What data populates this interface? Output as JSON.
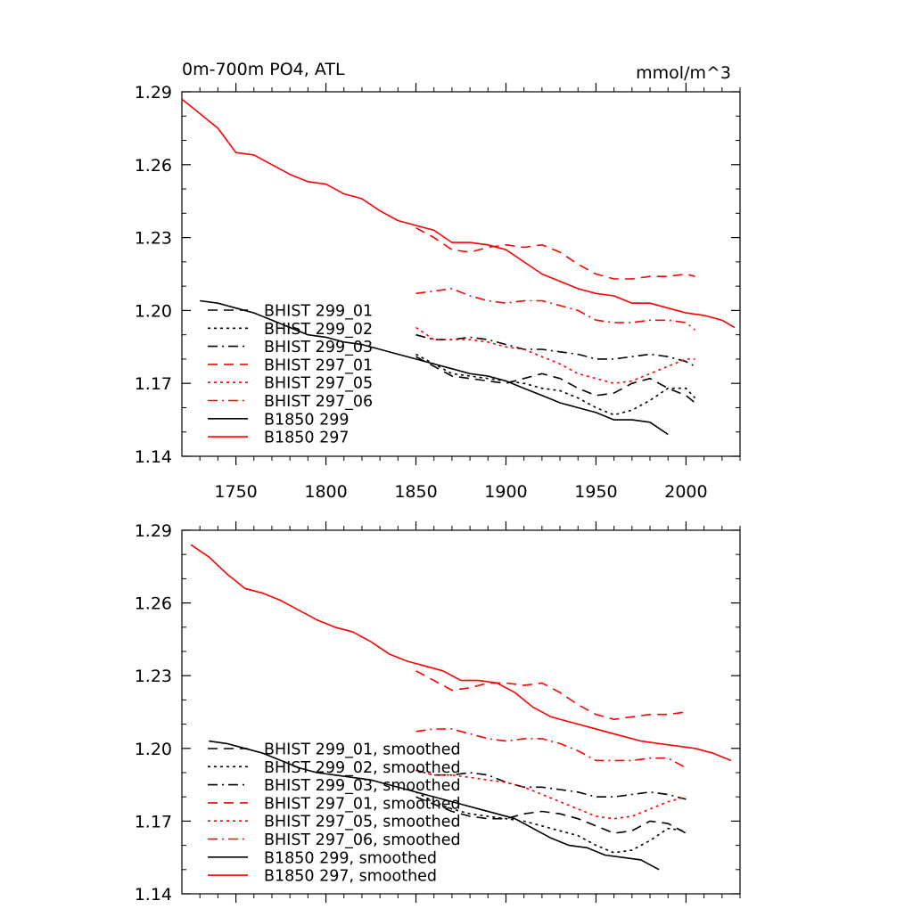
{
  "chart_data": [
    {
      "type": "line",
      "title": "0m-700m PO4, ATL",
      "units": "mmol/m^3",
      "xlabel": "",
      "ylabel": "",
      "xlim": [
        1720,
        2030
      ],
      "ylim": [
        1.14,
        1.29
      ],
      "x_ticks": [
        1750,
        1800,
        1850,
        1900,
        1950,
        2000
      ],
      "x_tick_labels": [
        "1750",
        "1800",
        "1850",
        "1900",
        "1950",
        "2000"
      ],
      "y_ticks": [
        1.14,
        1.17,
        1.2,
        1.23,
        1.26,
        1.29
      ],
      "y_tick_labels": [
        "1.14",
        "1.17",
        "1.20",
        "1.23",
        "1.26",
        "1.29"
      ],
      "grid": false,
      "legend_position": "bottom-left",
      "series": [
        {
          "name": "BHIST 299_01",
          "color": "#000000",
          "dash": "dashed",
          "x": [
            1850,
            1860,
            1870,
            1880,
            1890,
            1900,
            1910,
            1920,
            1930,
            1940,
            1950,
            1960,
            1970,
            1980,
            1990,
            2000,
            2005
          ],
          "values": [
            1.181,
            1.177,
            1.173,
            1.172,
            1.171,
            1.17,
            1.172,
            1.174,
            1.172,
            1.168,
            1.165,
            1.166,
            1.17,
            1.172,
            1.168,
            1.165,
            1.162
          ]
        },
        {
          "name": "BHIST 299_02",
          "color": "#000000",
          "dash": "dotted",
          "x": [
            1850,
            1860,
            1870,
            1880,
            1890,
            1900,
            1910,
            1920,
            1930,
            1940,
            1950,
            1960,
            1970,
            1980,
            1990,
            2000,
            2005
          ],
          "values": [
            1.182,
            1.178,
            1.174,
            1.173,
            1.172,
            1.171,
            1.17,
            1.168,
            1.167,
            1.164,
            1.16,
            1.157,
            1.159,
            1.163,
            1.168,
            1.168,
            1.164
          ]
        },
        {
          "name": "BHIST 299_03",
          "color": "#000000",
          "dash": "dashdot",
          "x": [
            1850,
            1860,
            1870,
            1880,
            1890,
            1900,
            1910,
            1920,
            1930,
            1940,
            1950,
            1960,
            1970,
            1980,
            1990,
            2000,
            2005
          ],
          "values": [
            1.19,
            1.188,
            1.188,
            1.189,
            1.188,
            1.186,
            1.184,
            1.184,
            1.183,
            1.182,
            1.18,
            1.18,
            1.181,
            1.182,
            1.181,
            1.179,
            1.177
          ]
        },
        {
          "name": "BHIST 297_01",
          "color": "#ff0000",
          "dash": "dashed",
          "x": [
            1850,
            1860,
            1870,
            1880,
            1890,
            1900,
            1910,
            1920,
            1930,
            1940,
            1950,
            1960,
            1970,
            1980,
            1990,
            2000,
            2005
          ],
          "values": [
            1.234,
            1.23,
            1.225,
            1.224,
            1.226,
            1.227,
            1.226,
            1.227,
            1.224,
            1.219,
            1.215,
            1.213,
            1.213,
            1.214,
            1.214,
            1.215,
            1.214
          ]
        },
        {
          "name": "BHIST 297_05",
          "color": "#ff0000",
          "dash": "dotted",
          "x": [
            1850,
            1860,
            1870,
            1880,
            1890,
            1900,
            1910,
            1920,
            1930,
            1940,
            1950,
            1960,
            1970,
            1980,
            1990,
            2000,
            2005
          ],
          "values": [
            1.193,
            1.188,
            1.188,
            1.188,
            1.187,
            1.185,
            1.184,
            1.181,
            1.178,
            1.174,
            1.172,
            1.17,
            1.171,
            1.174,
            1.177,
            1.18,
            1.18
          ]
        },
        {
          "name": "BHIST 297_06",
          "color": "#ff0000",
          "dash": "dashdot",
          "x": [
            1850,
            1860,
            1870,
            1880,
            1890,
            1900,
            1910,
            1920,
            1930,
            1940,
            1950,
            1960,
            1970,
            1980,
            1990,
            2000,
            2005
          ],
          "values": [
            1.207,
            1.208,
            1.209,
            1.206,
            1.204,
            1.203,
            1.204,
            1.204,
            1.202,
            1.2,
            1.196,
            1.195,
            1.195,
            1.196,
            1.196,
            1.195,
            1.192
          ]
        },
        {
          "name": "B1850 299",
          "color": "#000000",
          "dash": "solid",
          "x": [
            1730,
            1740,
            1750,
            1760,
            1770,
            1780,
            1790,
            1800,
            1810,
            1820,
            1830,
            1840,
            1850,
            1860,
            1870,
            1880,
            1890,
            1900,
            1910,
            1920,
            1930,
            1940,
            1950,
            1960,
            1970,
            1980,
            1990
          ],
          "values": [
            1.204,
            1.203,
            1.201,
            1.199,
            1.196,
            1.193,
            1.19,
            1.189,
            1.187,
            1.186,
            1.184,
            1.182,
            1.18,
            1.178,
            1.176,
            1.174,
            1.173,
            1.171,
            1.168,
            1.165,
            1.162,
            1.16,
            1.158,
            1.155,
            1.155,
            1.154,
            1.149
          ]
        },
        {
          "name": "B1850 297",
          "color": "#ff0000",
          "dash": "solid",
          "x": [
            1720,
            1730,
            1740,
            1750,
            1760,
            1770,
            1780,
            1790,
            1800,
            1810,
            1820,
            1830,
            1840,
            1850,
            1860,
            1870,
            1880,
            1890,
            1900,
            1910,
            1920,
            1930,
            1940,
            1950,
            1960,
            1970,
            1980,
            1990,
            2000,
            2010,
            2020,
            2027
          ],
          "values": [
            1.287,
            1.281,
            1.275,
            1.265,
            1.264,
            1.26,
            1.256,
            1.253,
            1.252,
            1.248,
            1.246,
            1.241,
            1.237,
            1.235,
            1.233,
            1.228,
            1.228,
            1.227,
            1.225,
            1.22,
            1.215,
            1.212,
            1.209,
            1.207,
            1.206,
            1.203,
            1.203,
            1.201,
            1.199,
            1.198,
            1.196,
            1.193
          ]
        }
      ]
    },
    {
      "type": "line",
      "title": "",
      "xlabel": "",
      "ylabel": "",
      "xlim": [
        1720,
        2030
      ],
      "ylim": [
        1.14,
        1.29
      ],
      "x_ticks": [
        1750,
        1800,
        1850,
        1900,
        1950,
        2000
      ],
      "x_tick_labels": [],
      "y_ticks": [
        1.14,
        1.17,
        1.2,
        1.23,
        1.26,
        1.29
      ],
      "y_tick_labels": [
        "1.14",
        "1.17",
        "1.20",
        "1.23",
        "1.26",
        "1.29"
      ],
      "grid": false,
      "legend_position": "bottom-left",
      "series": [
        {
          "name": "BHIST 299_01, smoothed",
          "color": "#000000",
          "dash": "dashed",
          "x": [
            1850,
            1860,
            1870,
            1880,
            1890,
            1900,
            1910,
            1920,
            1930,
            1940,
            1950,
            1960,
            1970,
            1980,
            1990,
            2000
          ],
          "values": [
            1.18,
            1.177,
            1.174,
            1.172,
            1.171,
            1.171,
            1.173,
            1.174,
            1.173,
            1.171,
            1.168,
            1.165,
            1.166,
            1.17,
            1.169,
            1.165
          ]
        },
        {
          "name": "BHIST 299_02, smoothed",
          "color": "#000000",
          "dash": "dotted",
          "x": [
            1850,
            1860,
            1870,
            1880,
            1890,
            1900,
            1910,
            1920,
            1930,
            1940,
            1950,
            1960,
            1970,
            1980,
            1990,
            2000
          ],
          "values": [
            1.182,
            1.178,
            1.175,
            1.173,
            1.172,
            1.171,
            1.17,
            1.168,
            1.166,
            1.164,
            1.16,
            1.157,
            1.158,
            1.162,
            1.167,
            1.166
          ]
        },
        {
          "name": "BHIST 299_03, smoothed",
          "color": "#000000",
          "dash": "dashdot",
          "x": [
            1850,
            1860,
            1870,
            1880,
            1890,
            1900,
            1910,
            1920,
            1930,
            1940,
            1950,
            1960,
            1970,
            1980,
            1990,
            2000
          ],
          "values": [
            1.191,
            1.189,
            1.189,
            1.19,
            1.189,
            1.186,
            1.184,
            1.184,
            1.183,
            1.182,
            1.18,
            1.18,
            1.181,
            1.182,
            1.181,
            1.179
          ]
        },
        {
          "name": "BHIST 297_01, smoothed",
          "color": "#ff0000",
          "dash": "dashed",
          "x": [
            1850,
            1860,
            1870,
            1880,
            1890,
            1900,
            1910,
            1920,
            1930,
            1940,
            1950,
            1960,
            1970,
            1980,
            1990,
            2000
          ],
          "values": [
            1.232,
            1.228,
            1.224,
            1.225,
            1.227,
            1.227,
            1.226,
            1.227,
            1.223,
            1.218,
            1.214,
            1.212,
            1.213,
            1.214,
            1.214,
            1.215
          ]
        },
        {
          "name": "BHIST 297_05, smoothed",
          "color": "#ff0000",
          "dash": "dotted",
          "x": [
            1850,
            1860,
            1870,
            1880,
            1890,
            1900,
            1910,
            1920,
            1930,
            1940,
            1950,
            1960,
            1970,
            1980,
            1990,
            2000
          ],
          "values": [
            1.191,
            1.189,
            1.189,
            1.188,
            1.187,
            1.186,
            1.184,
            1.181,
            1.178,
            1.175,
            1.172,
            1.171,
            1.172,
            1.175,
            1.178,
            1.18
          ]
        },
        {
          "name": "BHIST 297_06, smoothed",
          "color": "#ff0000",
          "dash": "dashdot",
          "x": [
            1850,
            1860,
            1870,
            1880,
            1890,
            1900,
            1910,
            1920,
            1930,
            1940,
            1950,
            1960,
            1970,
            1980,
            1990,
            2000
          ],
          "values": [
            1.207,
            1.208,
            1.208,
            1.206,
            1.204,
            1.203,
            1.204,
            1.204,
            1.202,
            1.199,
            1.195,
            1.195,
            1.195,
            1.196,
            1.196,
            1.192
          ]
        },
        {
          "name": "B1850 299, smoothed",
          "color": "#000000",
          "dash": "solid",
          "x": [
            1735,
            1745,
            1755,
            1765,
            1775,
            1785,
            1795,
            1805,
            1815,
            1825,
            1835,
            1845,
            1855,
            1865,
            1875,
            1885,
            1895,
            1905,
            1915,
            1925,
            1935,
            1945,
            1955,
            1965,
            1975,
            1985
          ],
          "values": [
            1.203,
            1.202,
            1.2,
            1.198,
            1.195,
            1.192,
            1.19,
            1.189,
            1.188,
            1.187,
            1.185,
            1.183,
            1.181,
            1.179,
            1.177,
            1.175,
            1.173,
            1.171,
            1.167,
            1.163,
            1.16,
            1.159,
            1.156,
            1.155,
            1.154,
            1.15
          ]
        },
        {
          "name": "B1850 297, smoothed",
          "color": "#ff0000",
          "dash": "solid",
          "x": [
            1725,
            1735,
            1745,
            1755,
            1765,
            1775,
            1785,
            1795,
            1805,
            1815,
            1825,
            1835,
            1845,
            1855,
            1865,
            1875,
            1885,
            1895,
            1905,
            1915,
            1925,
            1935,
            1945,
            1955,
            1965,
            1975,
            1985,
            1995,
            2005,
            2015,
            2025
          ],
          "values": [
            1.284,
            1.279,
            1.272,
            1.266,
            1.264,
            1.261,
            1.257,
            1.253,
            1.25,
            1.248,
            1.244,
            1.239,
            1.236,
            1.234,
            1.232,
            1.228,
            1.228,
            1.227,
            1.223,
            1.217,
            1.213,
            1.211,
            1.209,
            1.207,
            1.205,
            1.203,
            1.202,
            1.201,
            1.2,
            1.198,
            1.195
          ]
        }
      ]
    }
  ]
}
